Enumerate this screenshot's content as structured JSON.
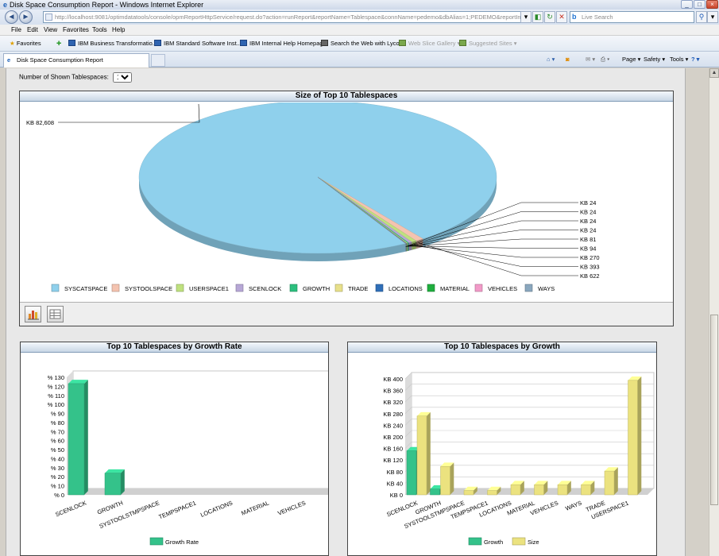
{
  "window": {
    "title": "Disk Space Consumption Report - Windows Internet Explorer",
    "url": "http://localhost:9081/optimdatatools/console/opmReportHttpService/request.do?action=runReport&reportName=Tablespace&connName=pedemo&dbAlias=1;PEDEMO&reportIntervalBegin=2010-0",
    "search_placeholder": "Live Search"
  },
  "menu": [
    "File",
    "Edit",
    "View",
    "Favorites",
    "Tools",
    "Help"
  ],
  "favorites": {
    "label": "Favorites",
    "items": [
      "IBM Business Transformatio...",
      "IBM Standard Software Inst...",
      "IBM Internal Help Homepage",
      "Search the Web with Lycos",
      "Web Slice Gallery",
      "Suggested Sites"
    ]
  },
  "tab": {
    "label": "Disk Space Consumption Report"
  },
  "commandbar": [
    "Page",
    "Safety",
    "Tools"
  ],
  "controls": {
    "shown_label": "Number of Shown Tablespaces:",
    "shown_value": "10"
  },
  "colors": {
    "SYSCATSPACE": "#8fd0ec",
    "SYSTOOLSPACE": "#f4c3b0",
    "USERSPACE1": "#bfe17f",
    "SCENLOCK": "#b7a7d6",
    "GROWTH": "#2cbf7e",
    "TRADE": "#e8e08a",
    "LOCATIONS": "#2f6fb8",
    "MATERIAL": "#1fae3e",
    "VEHICLES": "#f29ac8",
    "WAYS": "#8aa7be",
    "growth_bar": "#34c28a",
    "size_bar": "#ebe27f"
  },
  "chart_data": [
    {
      "type": "pie",
      "title": "Size of Top 10 Tablespaces",
      "categories": [
        "SYSCATSPACE",
        "SYSTOOLSPACE",
        "USERSPACE1",
        "SCENLOCK",
        "GROWTH",
        "TRADE",
        "LOCATIONS",
        "MATERIAL",
        "VEHICLES",
        "WAYS"
      ],
      "values": [
        82608,
        622,
        393,
        270,
        94,
        81,
        24,
        24,
        24,
        24
      ],
      "labels": [
        "KB 82,608",
        "KB 622",
        "KB 393",
        "KB 270",
        "KB 94",
        "KB 81",
        "KB 24",
        "KB 24",
        "KB 24",
        "KB 24"
      ],
      "legend": "bottom"
    },
    {
      "type": "bar",
      "title": "Top 10 Tablespaces by Growth Rate",
      "categories": [
        "SCENLOCK",
        "GROWTH",
        "SYSTOOLSTMPSPACE",
        "TEMPSPACE1",
        "LOCATIONS",
        "MATERIAL",
        "VEHICLES"
      ],
      "series": [
        {
          "name": "Growth Rate",
          "values": [
            123,
            24,
            0,
            0,
            0,
            0,
            0
          ]
        }
      ],
      "ylim": [
        0,
        130
      ],
      "yticks": [
        "% 0",
        "% 10",
        "% 20",
        "% 30",
        "% 40",
        "% 50",
        "% 60",
        "% 70",
        "% 80",
        "% 90",
        "% 100",
        "% 110",
        "% 120",
        "% 130"
      ],
      "legend": "bottom"
    },
    {
      "type": "bar",
      "title": "Top 10 Tablespaces by Growth",
      "categories": [
        "SCENLOCK",
        "GROWTH",
        "SYSTOOLSTMPSPACE",
        "TEMPSPACE1",
        "LOCATIONS",
        "MATERIAL",
        "VEHICLES",
        "WAYS",
        "TRADE",
        "USERSPACE1"
      ],
      "series": [
        {
          "name": "Growth",
          "values": [
            152,
            20,
            0,
            0,
            0,
            0,
            0,
            0,
            0,
            0
          ]
        },
        {
          "name": "Size",
          "values": [
            272,
            98,
            15,
            15,
            35,
            35,
            35,
            35,
            82,
            395
          ]
        }
      ],
      "ylim": [
        0,
        400
      ],
      "yticks": [
        "KB 0",
        "KB 40",
        "KB 80",
        "KB 120",
        "KB 160",
        "KB 200",
        "KB 240",
        "KB 280",
        "KB 320",
        "KB 360",
        "KB 400"
      ],
      "legend": "bottom"
    }
  ]
}
